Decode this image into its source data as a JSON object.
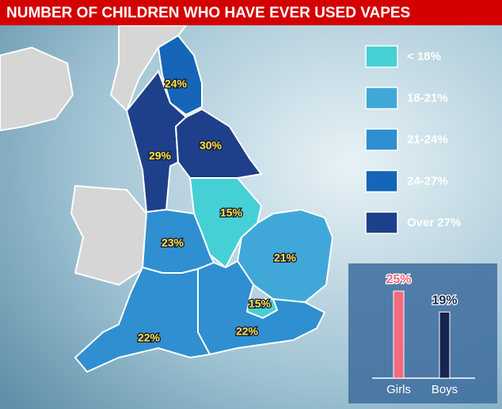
{
  "title": "NUMBER OF CHILDREN WHO HAVE EVER USED VAPES",
  "chart_data": [
    {
      "type": "choropleth",
      "legend": [
        {
          "label": "< 18%",
          "color": "#45d0d5"
        },
        {
          "label": "18-21%",
          "color": "#40a8d8"
        },
        {
          "label": "21-24%",
          "color": "#2f8fd0"
        },
        {
          "label": "24-27%",
          "color": "#1565b8"
        },
        {
          "label": "Over 27%",
          "color": "#1e3f8a"
        }
      ],
      "values": [
        24,
        29,
        30,
        15,
        23,
        21,
        15,
        22,
        22
      ],
      "value_labels": [
        "24%",
        "29%",
        "30%",
        "15%",
        "23%",
        "21%",
        "15%",
        "22%",
        "22%"
      ],
      "colors": [
        "#1565b8",
        "#1e3f8a",
        "#1e3f8a",
        "#45d0d5",
        "#2f8fd0",
        "#40a8d8",
        "#45d0d5",
        "#2f8fd0",
        "#2f8fd0"
      ]
    },
    {
      "type": "bar",
      "categories": [
        "Girls",
        "Boys"
      ],
      "values": [
        25,
        19
      ],
      "value_labels": [
        "25%",
        "19%"
      ],
      "colors": [
        "#f26b7e",
        "#16244f"
      ]
    }
  ]
}
